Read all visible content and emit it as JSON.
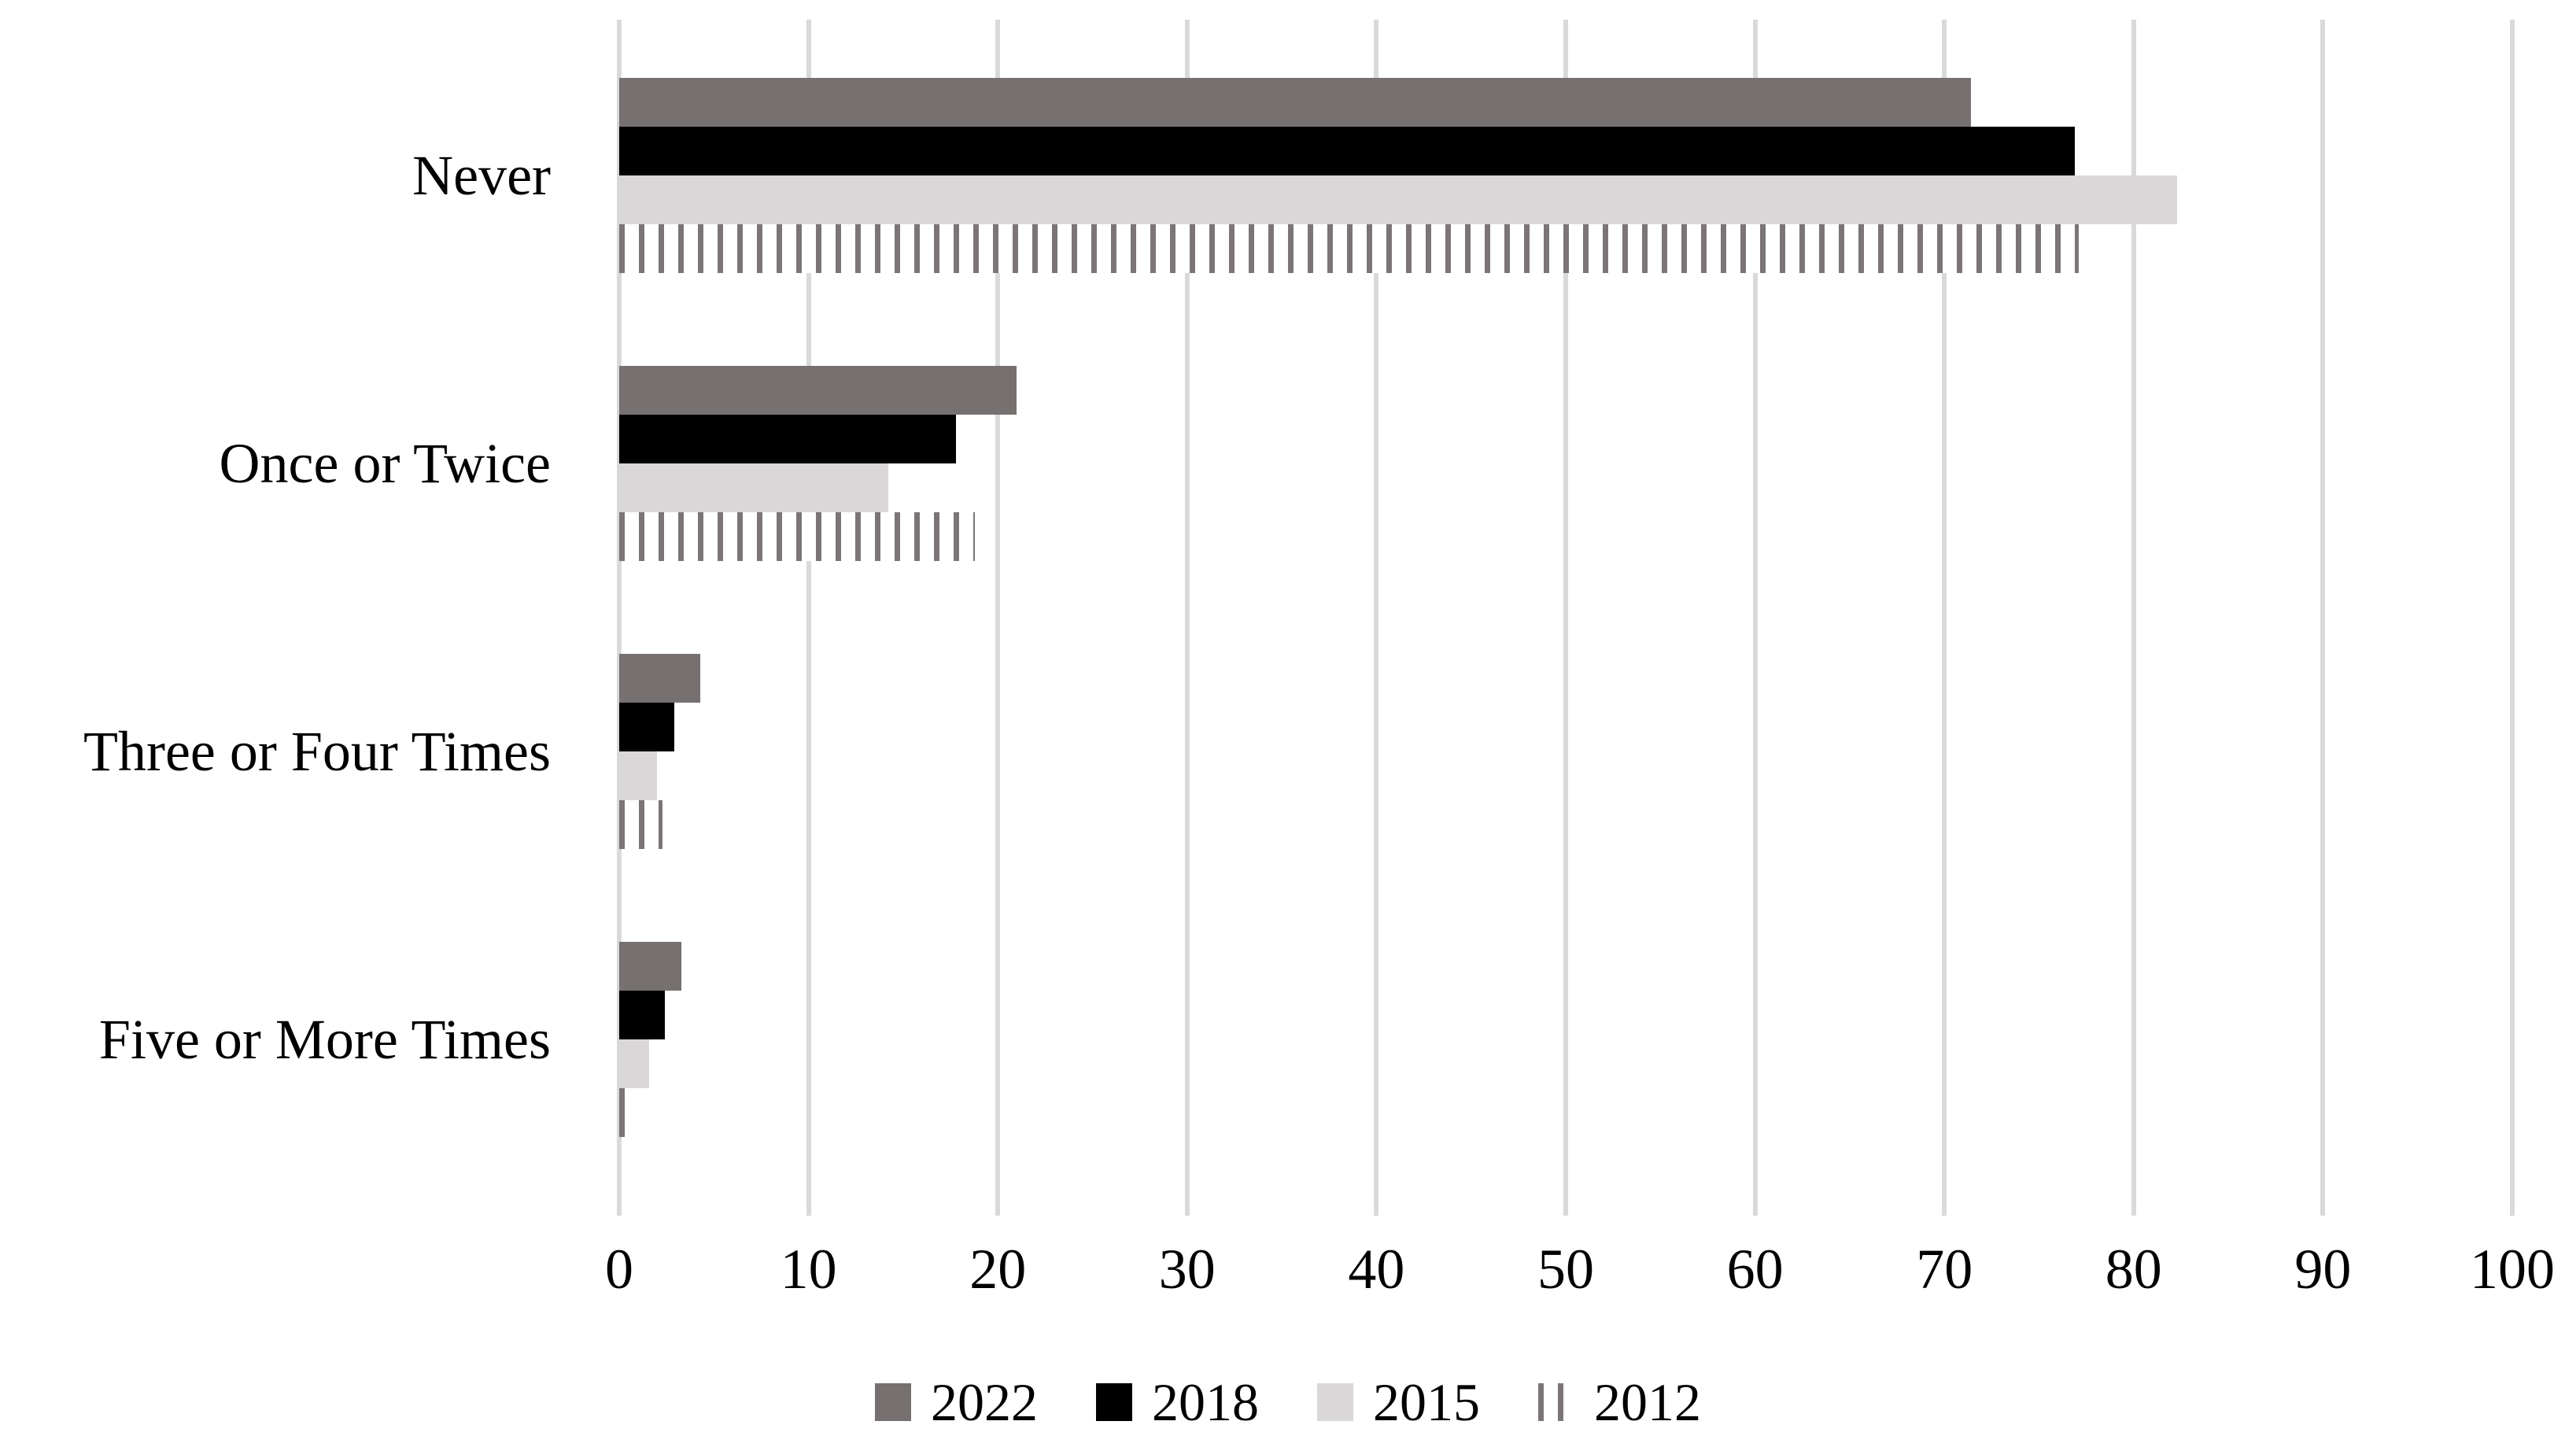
{
  "chart_data": {
    "type": "bar",
    "orientation": "horizontal",
    "title": "",
    "categories": [
      "Five or More Times",
      "Three or Four Times",
      "Once or Twice",
      "Never"
    ],
    "series": [
      {
        "name": "2022",
        "fill": "solid",
        "color": "#767170",
        "values": [
          3.3,
          4.3,
          21.0,
          71.4
        ]
      },
      {
        "name": "2018",
        "fill": "solid",
        "color": "#000000",
        "values": [
          2.4,
          2.9,
          17.8,
          76.9
        ]
      },
      {
        "name": "2015",
        "fill": "solid",
        "color": "#d9d7d7",
        "values": [
          1.6,
          2.0,
          14.2,
          82.3
        ]
      },
      {
        "name": "2012",
        "fill": "vertical-stripes",
        "color": "#7c7575",
        "pattern_bg": "#ffffff",
        "values": [
          0.4,
          2.3,
          18.8,
          77.1
        ]
      }
    ],
    "xlim": [
      0,
      100
    ],
    "x_ticks": [
      "0",
      "10",
      "20",
      "30",
      "40",
      "50",
      "60",
      "70",
      "80",
      "90",
      "100"
    ],
    "grid": true,
    "gridline_color": "#d9d9d9",
    "legend_position": "bottom",
    "legend_order": [
      "2022",
      "2018",
      "2015",
      "2012"
    ]
  }
}
